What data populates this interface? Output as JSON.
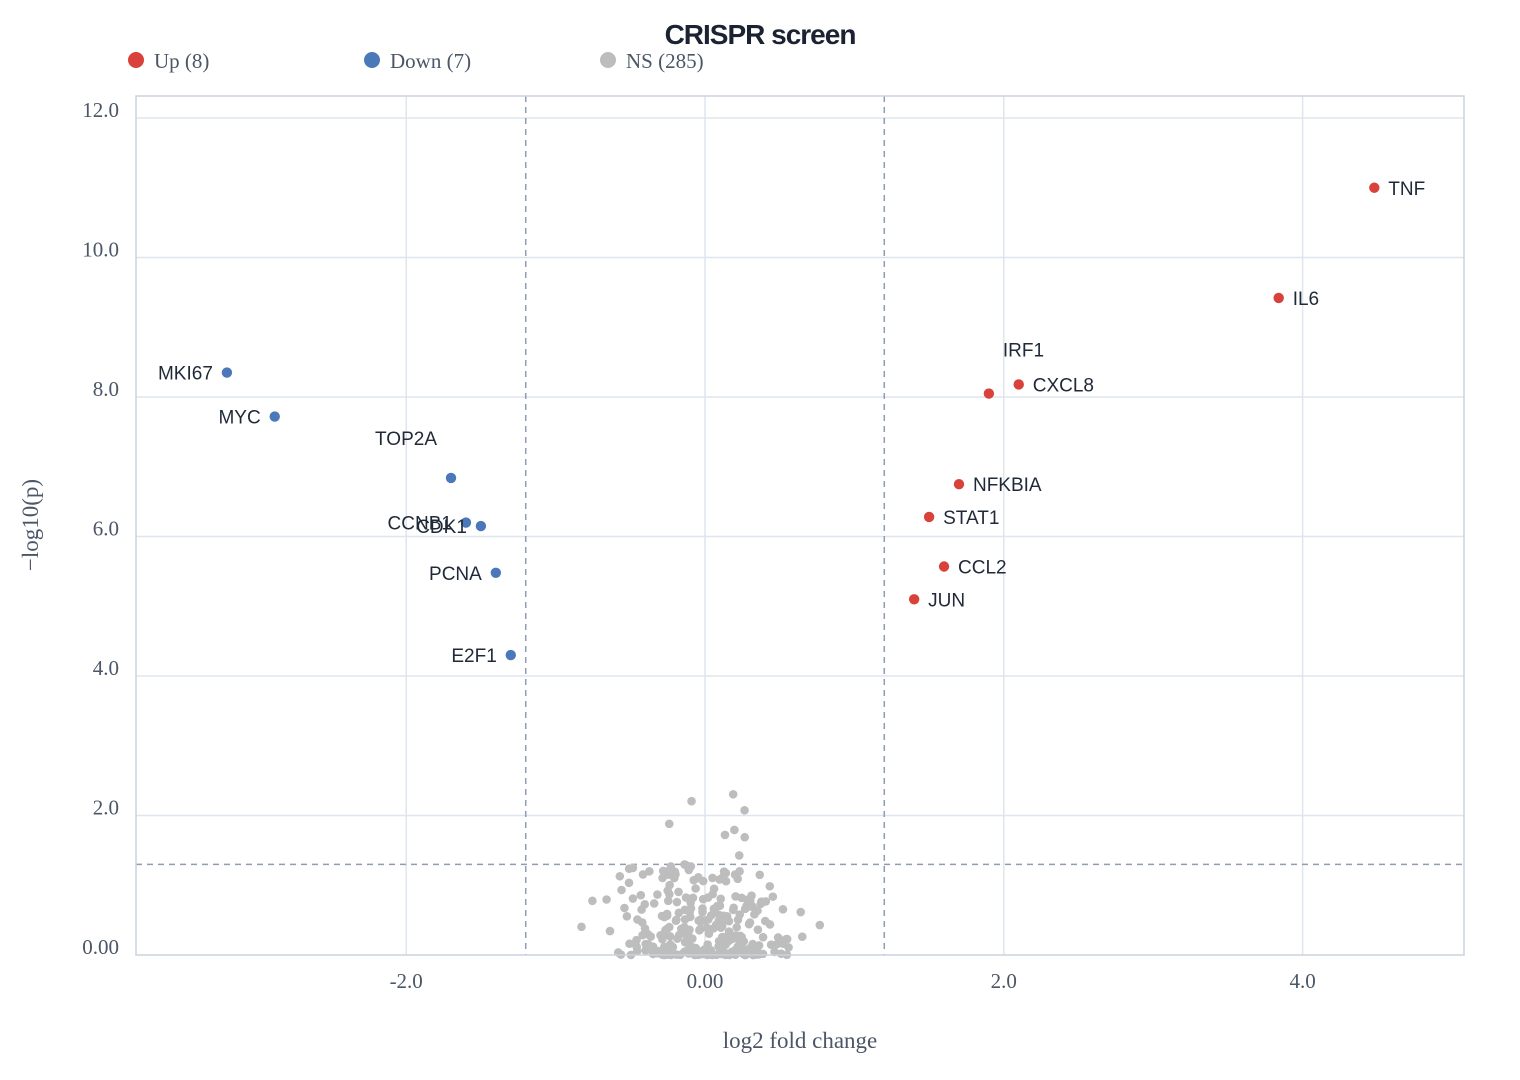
{
  "chart_data": {
    "type": "scatter",
    "title": "CRISPR screen",
    "xlabel": "log2 fold change",
    "ylabel": "−log10(p)",
    "xlim": [
      -3.8,
      5.4
    ],
    "ylim": [
      0,
      12.5
    ],
    "x_ticks": [
      {
        "value": -2,
        "label": "-2.0"
      },
      {
        "value": 0,
        "label": "0.00"
      },
      {
        "value": 2,
        "label": "2.0"
      },
      {
        "value": 4,
        "label": "4.0"
      }
    ],
    "y_ticks": [
      {
        "value": 0,
        "label": "0.00"
      },
      {
        "value": 2,
        "label": "2.0"
      },
      {
        "value": 4,
        "label": "4.0"
      },
      {
        "value": 6,
        "label": "6.0"
      },
      {
        "value": 8,
        "label": "8.0"
      },
      {
        "value": 10,
        "label": "10.0"
      },
      {
        "value": 12,
        "label": "12.0"
      }
    ],
    "grid": true,
    "legend_position": "top-left",
    "thresholds": {
      "x": [
        -1.2,
        1.2
      ],
      "y": 1.3
    },
    "series": [
      {
        "name": "Up (8)",
        "color": "#d9423a",
        "points": [
          {
            "gene": "TNF",
            "x": 4.48,
            "y": 11.0
          },
          {
            "gene": "IL6",
            "x": 3.84,
            "y": 9.42
          },
          {
            "gene": "IRF1",
            "x": 1.9,
            "y": 8.05
          },
          {
            "gene": "CXCL8",
            "x": 2.1,
            "y": 8.18
          },
          {
            "gene": "NFKBIA",
            "x": 1.7,
            "y": 6.75
          },
          {
            "gene": "STAT1",
            "x": 1.5,
            "y": 6.28
          },
          {
            "gene": "CCL2",
            "x": 1.6,
            "y": 5.57
          },
          {
            "gene": "JUN",
            "x": 1.4,
            "y": 5.1
          }
        ]
      },
      {
        "name": "Down (7)",
        "color": "#4a78b8",
        "points": [
          {
            "gene": "MKI67",
            "x": -3.2,
            "y": 8.35
          },
          {
            "gene": "MYC",
            "x": -2.88,
            "y": 7.72
          },
          {
            "gene": "TOP2A",
            "x": -1.7,
            "y": 6.84
          },
          {
            "gene": "CCNB1",
            "x": -1.6,
            "y": 6.2
          },
          {
            "gene": "CDK1",
            "x": -1.5,
            "y": 6.15
          },
          {
            "gene": "PCNA",
            "x": -1.4,
            "y": 5.48
          },
          {
            "gene": "E2F1",
            "x": -1.3,
            "y": 4.3
          }
        ]
      },
      {
        "name": "NS (285)",
        "color": "#bdbdbd",
        "count": 285,
        "x_range": [
          -1.2,
          1.2
        ],
        "y_range": [
          0,
          2.45
        ]
      }
    ]
  }
}
